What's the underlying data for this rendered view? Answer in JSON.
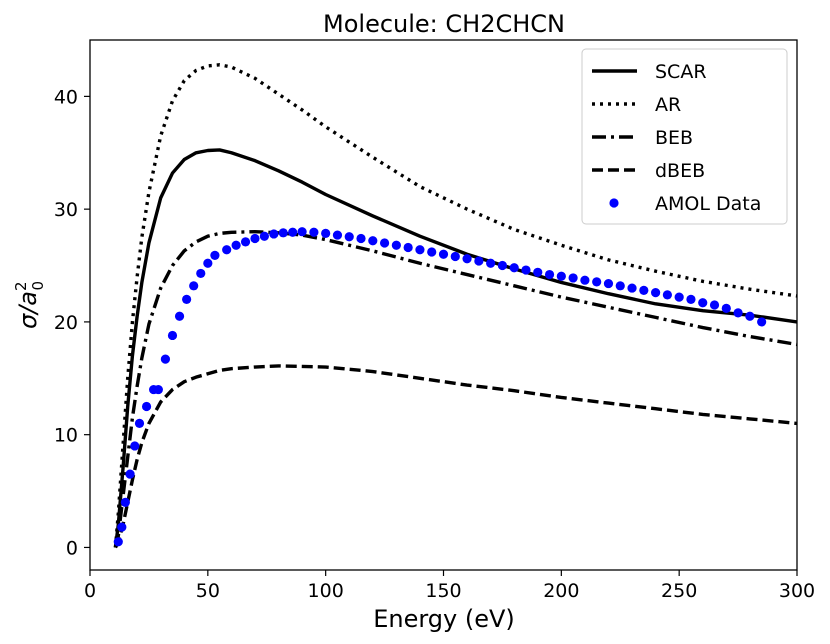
{
  "chart_data": {
    "type": "line",
    "title": "Molecule: CH2CHCN",
    "xlabel": "Energy (eV)",
    "ylabel": "σ/a",
    "ylabel_sup": "2",
    "ylabel_sub": "0",
    "xlim": [
      0,
      300
    ],
    "ylim": [
      -2,
      45
    ],
    "xticks": [
      0,
      50,
      100,
      150,
      200,
      250,
      300
    ],
    "yticks": [
      0,
      10,
      20,
      30,
      40
    ],
    "legend_position": "top-right",
    "series": [
      {
        "name": "SCAR",
        "style": "solid",
        "color": "#000000",
        "x": [
          10.8,
          12,
          14,
          16,
          18,
          20,
          22,
          25,
          30,
          35,
          40,
          45,
          50,
          55,
          60,
          70,
          80,
          90,
          100,
          120,
          140,
          160,
          180,
          200,
          220,
          240,
          260,
          280,
          300
        ],
        "y": [
          0,
          2,
          7,
          12.5,
          17,
          20.5,
          23.5,
          27,
          31,
          33.2,
          34.4,
          35,
          35.2,
          35.25,
          35.0,
          34.3,
          33.4,
          32.4,
          31.3,
          29.4,
          27.6,
          26.0,
          24.7,
          23.5,
          22.5,
          21.6,
          21.0,
          20.6,
          20.0
        ]
      },
      {
        "name": "AR",
        "style": "dotted",
        "color": "#000000",
        "x": [
          10.8,
          12,
          14,
          16,
          18,
          20,
          22,
          25,
          30,
          35,
          40,
          45,
          50,
          55,
          60,
          70,
          80,
          90,
          100,
          120,
          140,
          160,
          180,
          200,
          220,
          240,
          260,
          280,
          300
        ],
        "y": [
          0,
          3,
          9,
          15,
          20,
          24,
          27.5,
          31.5,
          36.5,
          39.6,
          41.4,
          42.3,
          42.7,
          42.8,
          42.6,
          41.6,
          40.2,
          38.8,
          37.3,
          34.6,
          32.0,
          30.0,
          28.2,
          26.8,
          25.5,
          24.5,
          23.6,
          22.9,
          22.3
        ]
      },
      {
        "name": "BEB",
        "style": "dashdot",
        "color": "#000000",
        "x": [
          10.8,
          12,
          14,
          16,
          18,
          20,
          22,
          25,
          30,
          35,
          40,
          45,
          50,
          55,
          60,
          70,
          80,
          90,
          100,
          120,
          140,
          160,
          180,
          200,
          220,
          240,
          260,
          280,
          300
        ],
        "y": [
          0,
          1,
          4.5,
          8,
          11.5,
          14.3,
          16.8,
          19.8,
          23,
          25,
          26.3,
          27.1,
          27.6,
          27.85,
          27.95,
          28.0,
          27.9,
          27.7,
          27.3,
          26.3,
          25.2,
          24.2,
          23.2,
          22.2,
          21.3,
          20.4,
          19.5,
          18.7,
          18.0
        ]
      },
      {
        "name": "dBEB",
        "style": "dashed",
        "color": "#000000",
        "x": [
          10.8,
          12,
          14,
          16,
          18,
          20,
          22,
          25,
          30,
          35,
          40,
          45,
          50,
          55,
          60,
          70,
          80,
          90,
          100,
          120,
          140,
          160,
          180,
          200,
          220,
          240,
          260,
          280,
          300
        ],
        "y": [
          0,
          0.5,
          2,
          4,
          6,
          7.8,
          9.3,
          11,
          12.9,
          14.0,
          14.7,
          15.1,
          15.4,
          15.7,
          15.85,
          16.0,
          16.1,
          16.05,
          16.0,
          15.6,
          15.0,
          14.4,
          13.9,
          13.3,
          12.8,
          12.3,
          11.8,
          11.4,
          11.0
        ]
      },
      {
        "name": "AMOL Data",
        "style": "markers",
        "color": "#0000ff",
        "x": [
          12,
          13.5,
          15,
          17,
          19,
          21,
          24,
          27,
          29,
          32,
          35,
          38,
          41,
          44,
          47,
          50,
          53,
          58,
          62,
          66,
          70,
          74,
          78,
          82,
          86,
          90,
          95,
          100,
          105,
          110,
          115,
          120,
          125,
          130,
          135,
          140,
          145,
          150,
          155,
          160,
          165,
          170,
          175,
          180,
          185,
          190,
          195,
          200,
          205,
          210,
          215,
          220,
          225,
          230,
          235,
          240,
          245,
          250,
          255,
          260,
          265,
          270,
          275,
          280,
          285
        ],
        "y": [
          0.5,
          1.8,
          4,
          6.5,
          9,
          11,
          12.5,
          14,
          14,
          16.7,
          18.8,
          20.5,
          22,
          23.2,
          24.3,
          25.2,
          25.9,
          26.4,
          26.8,
          27.1,
          27.4,
          27.6,
          27.8,
          27.9,
          27.95,
          28.0,
          27.95,
          27.85,
          27.7,
          27.55,
          27.4,
          27.2,
          27.0,
          26.8,
          26.6,
          26.4,
          26.2,
          26.0,
          25.8,
          25.6,
          25.4,
          25.2,
          25.0,
          24.8,
          24.6,
          24.4,
          24.2,
          24.05,
          23.9,
          23.7,
          23.55,
          23.4,
          23.2,
          23.0,
          22.8,
          22.6,
          22.4,
          22.2,
          22.0,
          21.7,
          21.5,
          21.2,
          20.8,
          20.5,
          20.0
        ]
      }
    ]
  }
}
